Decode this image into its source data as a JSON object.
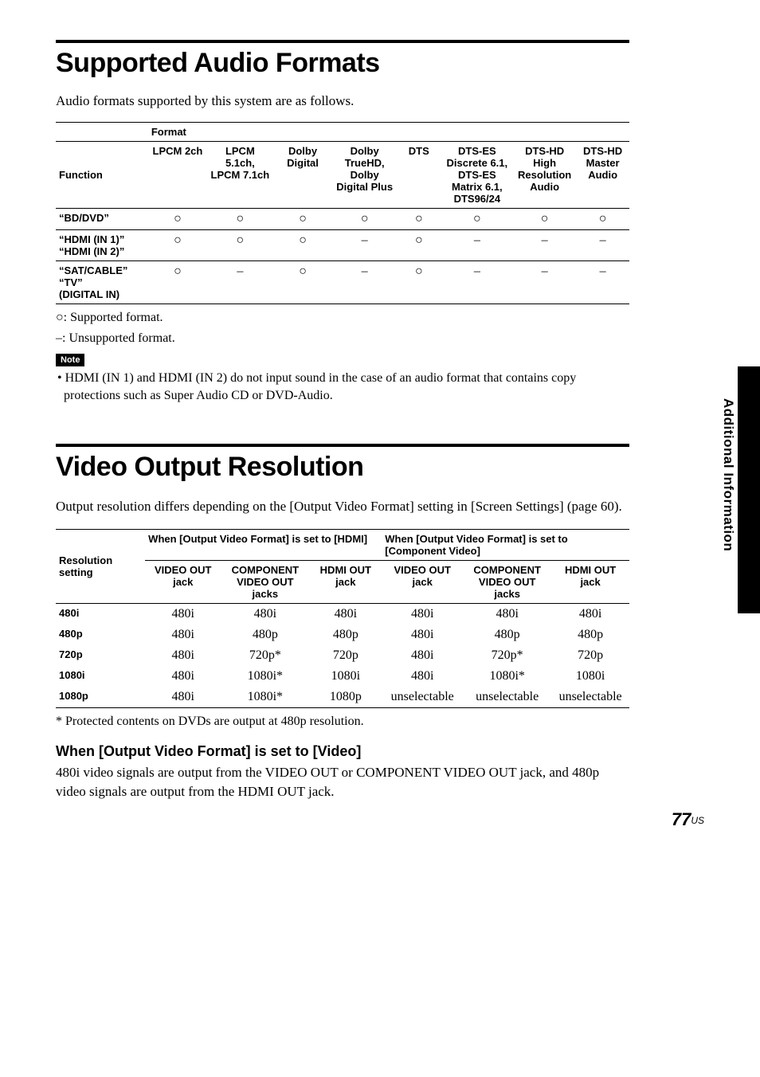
{
  "section1": {
    "title": "Supported Audio Formats",
    "intro": "Audio formats supported by this system are as follows.",
    "format_label": "Format",
    "function_label": "Function",
    "columns": [
      "LPCM 2ch",
      "LPCM 5.1ch, LPCM 7.1ch",
      "Dolby Digital",
      "Dolby TrueHD, Dolby Digital Plus",
      "DTS",
      "DTS-ES Discrete 6.1, DTS-ES Matrix 6.1, DTS96/24",
      "DTS-HD High Resolution Audio",
      "DTS-HD Master Audio"
    ],
    "rows": [
      {
        "name": "“BD/DVD”",
        "cells": [
          "a",
          "a",
          "a",
          "a",
          "a",
          "a",
          "a",
          "a"
        ]
      },
      {
        "name": "“HDMI (IN 1)” “HDMI (IN 2)”",
        "cells": [
          "a",
          "a",
          "a",
          "–",
          "a",
          "–",
          "–",
          "–"
        ]
      },
      {
        "name": "“SAT/CABLE” “TV” (DIGITAL IN)",
        "cells": [
          "a",
          "–",
          "a",
          "–",
          "a",
          "–",
          "–",
          "–"
        ]
      }
    ],
    "legend_supported": "a: Supported format.",
    "legend_unsupported": "–: Unsupported format.",
    "note_label": "Note",
    "note_body": "• HDMI (IN 1) and HDMI (IN 2) do not input sound in the case of an audio format that contains copy protections such as Super Audio CD or DVD-Audio."
  },
  "section2": {
    "title": "Video Output Resolution",
    "intro": "Output resolution differs depending on the [Output Video Format] setting in [Screen Settings] (page 60).",
    "resolution_label": "Resolution setting",
    "group1_label": "When [Output Video Format] is set to [HDMI]",
    "group2_label": "When [Output Video Format] is set to [Component Video]",
    "sub_cols": [
      "VIDEO OUT jack",
      "COMPONENT VIDEO OUT jacks",
      "HDMI OUT jack",
      "VIDEO OUT jack",
      "COMPONENT VIDEO OUT jacks",
      "HDMI OUT jack"
    ],
    "rows": [
      {
        "name": "480i",
        "cells": [
          "480i",
          "480i",
          "480i",
          "480i",
          "480i",
          "480i"
        ]
      },
      {
        "name": "480p",
        "cells": [
          "480i",
          "480p",
          "480p",
          "480i",
          "480p",
          "480p"
        ]
      },
      {
        "name": "720p",
        "cells": [
          "480i",
          "720p*",
          "720p",
          "480i",
          "720p*",
          "720p"
        ]
      },
      {
        "name": "1080i",
        "cells": [
          "480i",
          "1080i*",
          "1080i",
          "480i",
          "1080i*",
          "1080i"
        ]
      },
      {
        "name": "1080p",
        "cells": [
          "480i",
          "1080i*",
          "1080p",
          "unselectable",
          "unselectable",
          "unselectable"
        ]
      }
    ],
    "footnote": "*  Protected contents on DVDs are output at 480p resolution.",
    "sub_title": "When [Output Video Format] is set to [Video]",
    "sub_body": "480i video signals are output from the VIDEO OUT or COMPONENT VIDEO OUT jack, and 480p video signals are output from the HDMI OUT jack."
  },
  "sidebar": {
    "label": "Additional Information"
  },
  "pagenum": {
    "big": "77",
    "small": "US"
  },
  "circle_glyph": "○"
}
